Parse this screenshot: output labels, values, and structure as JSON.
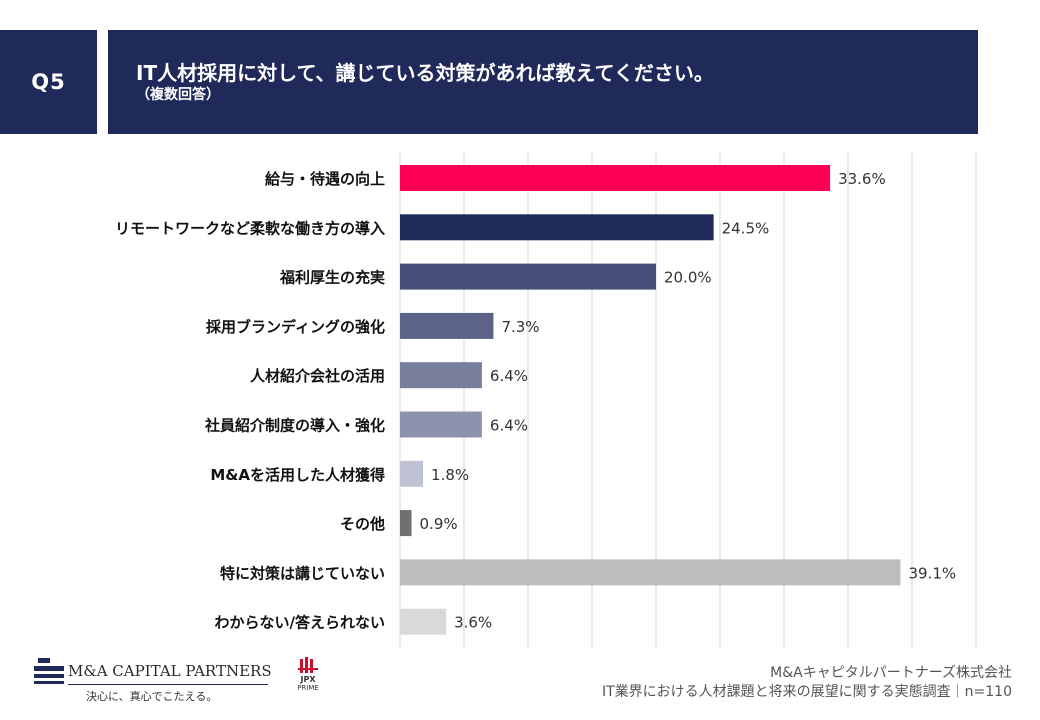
{
  "header": {
    "question_label": "Q5",
    "title": "IT人材採用に対して、講じている対策があれば教えてください。",
    "subtitle": "（複数回答）"
  },
  "chart_data": {
    "type": "bar",
    "orientation": "horizontal",
    "categories": [
      "給与・待遇の向上",
      "リモートワークなど柔軟な働き方の導入",
      "福利厚生の充実",
      "採用ブランディングの強化",
      "人材紹介会社の活用",
      "社員紹介制度の導入・強化",
      "M&Aを活用した人材獲得",
      "その他",
      "特に対策は講じていない",
      "わからない/答えられない"
    ],
    "values": [
      33.6,
      24.5,
      20.0,
      7.3,
      6.4,
      6.4,
      1.8,
      0.9,
      39.1,
      3.6
    ],
    "value_labels": [
      "33.6%",
      "24.5%",
      "20.0%",
      "7.3%",
      "6.4%",
      "6.4%",
      "1.8%",
      "0.9%",
      "39.1%",
      "3.6%"
    ],
    "bar_colors": [
      "#ff0055",
      "#202a5a",
      "#474f78",
      "#5c6388",
      "#787e9c",
      "#8e93ad",
      "#bfc2d2",
      "#707070",
      "#bdbdbd",
      "#d9d9d9"
    ],
    "xlim": [
      0,
      45
    ],
    "grid": true,
    "unit": "%"
  },
  "footer": {
    "company": "M&Aキャピタルパートナーズ株式会社",
    "survey": "IT業界における人材課題と将来の展望に関する実態調査｜n=110"
  },
  "logo": {
    "name": "M&A CAPITAL PARTNERS",
    "tagline": "決心に、真心でこたえる。",
    "jpx_name": "JPX",
    "jpx_sub": "PRIME"
  },
  "colors": {
    "header_bg": "#202a5a",
    "grid": "#d6d6d6"
  }
}
